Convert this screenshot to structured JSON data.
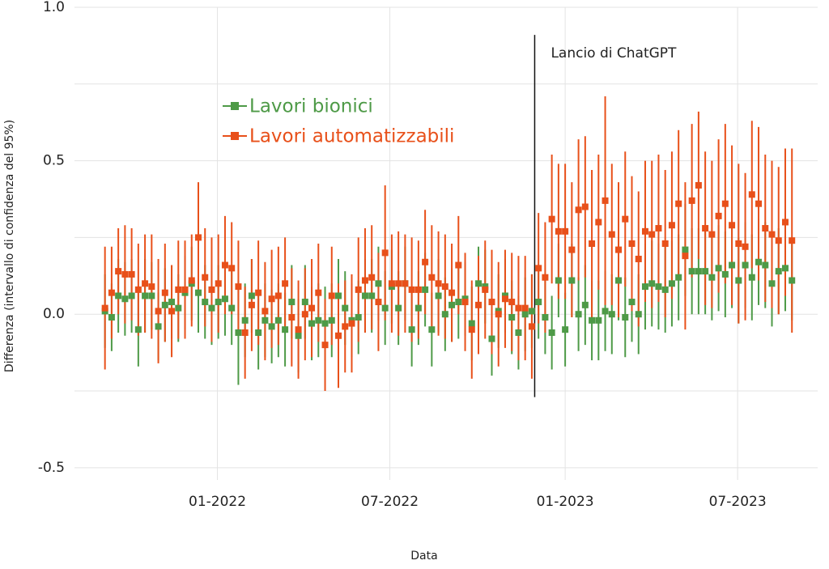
{
  "chart_data": {
    "type": "errorbar",
    "xlabel": "Data",
    "ylabel": "Differenza (intervallo di confidenza del 95%)",
    "x": [
      "2021-09-05",
      "2021-09-12",
      "2021-09-19",
      "2021-09-26",
      "2021-10-03",
      "2021-10-10",
      "2021-10-17",
      "2021-10-24",
      "2021-10-31",
      "2021-11-07",
      "2021-11-14",
      "2021-11-21",
      "2021-11-28",
      "2021-12-05",
      "2021-12-12",
      "2021-12-19",
      "2021-12-26",
      "2022-01-02",
      "2022-01-09",
      "2022-01-16",
      "2022-01-23",
      "2022-01-30",
      "2022-02-06",
      "2022-02-13",
      "2022-02-20",
      "2022-02-27",
      "2022-03-06",
      "2022-03-13",
      "2022-03-20",
      "2022-03-27",
      "2022-04-03",
      "2022-04-10",
      "2022-04-17",
      "2022-04-24",
      "2022-05-01",
      "2022-05-08",
      "2022-05-15",
      "2022-05-22",
      "2022-05-29",
      "2022-06-05",
      "2022-06-12",
      "2022-06-19",
      "2022-06-26",
      "2022-07-03",
      "2022-07-10",
      "2022-07-17",
      "2022-07-24",
      "2022-07-31",
      "2022-08-07",
      "2022-08-14",
      "2022-08-21",
      "2022-08-28",
      "2022-09-04",
      "2022-09-11",
      "2022-09-18",
      "2022-09-25",
      "2022-10-02",
      "2022-10-09",
      "2022-10-16",
      "2022-10-23",
      "2022-10-30",
      "2022-11-06",
      "2022-11-13",
      "2022-11-20",
      "2022-11-27",
      "2022-12-04",
      "2022-12-11",
      "2022-12-18",
      "2022-12-25",
      "2023-01-01",
      "2023-01-08",
      "2023-01-15",
      "2023-01-22",
      "2023-01-29",
      "2023-02-05",
      "2023-02-12",
      "2023-02-19",
      "2023-02-26",
      "2023-03-05",
      "2023-03-12",
      "2023-03-19",
      "2023-03-26",
      "2023-04-02",
      "2023-04-09",
      "2023-04-16",
      "2023-04-23",
      "2023-04-30",
      "2023-05-07",
      "2023-05-14",
      "2023-05-21",
      "2023-05-28",
      "2023-06-04",
      "2023-06-11",
      "2023-06-18",
      "2023-06-25",
      "2023-07-02",
      "2023-07-09",
      "2023-07-16",
      "2023-07-23",
      "2023-07-30",
      "2023-08-06",
      "2023-08-13",
      "2023-08-20",
      "2023-08-27"
    ],
    "series": [
      {
        "name": "Lavori bionici",
        "color": "#4e9a47",
        "values": [
          0.01,
          -0.01,
          0.06,
          0.05,
          0.06,
          -0.05,
          0.06,
          0.06,
          -0.04,
          0.03,
          0.04,
          0.02,
          0.07,
          0.1,
          0.07,
          0.04,
          0.02,
          0.04,
          0.05,
          0.02,
          -0.06,
          -0.02,
          0.06,
          -0.06,
          -0.02,
          -0.04,
          -0.02,
          -0.05,
          0.04,
          -0.07,
          0.04,
          -0.03,
          -0.02,
          -0.03,
          -0.02,
          0.06,
          0.02,
          -0.02,
          -0.01,
          0.06,
          0.06,
          0.1,
          0.02,
          0.09,
          0.02,
          0.1,
          -0.05,
          0.02,
          0.08,
          -0.05,
          0.06,
          0.0,
          0.03,
          0.04,
          0.05,
          -0.03,
          0.1,
          0.09,
          -0.08,
          0.01,
          0.06,
          -0.01,
          -0.06,
          0.0,
          0.01,
          0.04,
          -0.01,
          -0.06,
          0.11,
          -0.05,
          0.11,
          0.0,
          0.03,
          -0.02,
          -0.02,
          0.01,
          0.0,
          0.11,
          -0.01,
          0.04,
          0.0,
          0.09,
          0.1,
          0.09,
          0.08,
          0.1,
          0.12,
          0.21,
          0.14,
          0.14,
          0.14,
          0.12,
          0.15,
          0.13,
          0.16,
          0.11,
          0.16,
          0.12,
          0.17,
          0.16,
          0.1,
          0.14,
          0.15,
          0.11
        ],
        "errors": [
          0.12,
          0.11,
          0.12,
          0.12,
          0.12,
          0.12,
          0.12,
          0.11,
          0.11,
          0.12,
          0.12,
          0.11,
          0.12,
          0.12,
          0.13,
          0.12,
          0.12,
          0.12,
          0.12,
          0.12,
          0.17,
          0.12,
          0.12,
          0.12,
          0.12,
          0.12,
          0.12,
          0.12,
          0.12,
          0.12,
          0.12,
          0.12,
          0.12,
          0.12,
          0.12,
          0.12,
          0.12,
          0.12,
          0.12,
          0.12,
          0.12,
          0.12,
          0.12,
          0.12,
          0.12,
          0.12,
          0.12,
          0.12,
          0.12,
          0.12,
          0.12,
          0.12,
          0.12,
          0.12,
          0.12,
          0.12,
          0.12,
          0.12,
          0.12,
          0.12,
          0.12,
          0.12,
          0.12,
          0.12,
          0.12,
          0.12,
          0.12,
          0.12,
          0.12,
          0.12,
          0.12,
          0.12,
          0.13,
          0.13,
          0.13,
          0.13,
          0.13,
          0.13,
          0.13,
          0.13,
          0.13,
          0.14,
          0.14,
          0.14,
          0.14,
          0.14,
          0.14,
          0.15,
          0.14,
          0.14,
          0.14,
          0.14,
          0.14,
          0.14,
          0.14,
          0.14,
          0.14,
          0.14,
          0.14,
          0.14,
          0.14,
          0.14,
          0.14,
          0.13
        ]
      },
      {
        "name": "Lavori automatizzabili",
        "color": "#e8501a",
        "values": [
          0.02,
          0.07,
          0.14,
          0.13,
          0.13,
          0.08,
          0.1,
          0.09,
          0.01,
          0.07,
          0.01,
          0.08,
          0.08,
          0.11,
          0.25,
          0.12,
          0.08,
          0.1,
          0.16,
          0.15,
          0.09,
          -0.06,
          0.03,
          0.07,
          0.01,
          0.05,
          0.06,
          0.1,
          -0.01,
          -0.05,
          0.0,
          0.02,
          0.07,
          -0.1,
          0.06,
          -0.07,
          -0.04,
          -0.03,
          0.08,
          0.11,
          0.12,
          0.04,
          0.2,
          0.1,
          0.1,
          0.1,
          0.08,
          0.08,
          0.17,
          0.12,
          0.1,
          0.09,
          0.07,
          0.16,
          0.04,
          -0.05,
          0.03,
          0.08,
          0.04,
          0.0,
          0.05,
          0.04,
          0.02,
          0.02,
          -0.04,
          0.15,
          0.12,
          0.31,
          0.27,
          0.27,
          0.21,
          0.34,
          0.35,
          0.23,
          0.3,
          0.37,
          0.26,
          0.21,
          0.31,
          0.23,
          0.18,
          0.27,
          0.26,
          0.28,
          0.23,
          0.29,
          0.36,
          0.19,
          0.37,
          0.42,
          0.28,
          0.26,
          0.32,
          0.36,
          0.29,
          0.23,
          0.22,
          0.39,
          0.36,
          0.28,
          0.26,
          0.24,
          0.3,
          0.24
        ],
        "errors": [
          0.2,
          0.15,
          0.14,
          0.16,
          0.15,
          0.15,
          0.16,
          0.17,
          0.17,
          0.16,
          0.15,
          0.16,
          0.16,
          0.15,
          0.18,
          0.16,
          0.17,
          0.16,
          0.16,
          0.15,
          0.15,
          0.15,
          0.15,
          0.17,
          0.16,
          0.16,
          0.16,
          0.15,
          0.16,
          0.16,
          0.15,
          0.16,
          0.16,
          0.15,
          0.16,
          0.17,
          0.15,
          0.16,
          0.17,
          0.17,
          0.17,
          0.16,
          0.22,
          0.16,
          0.17,
          0.16,
          0.17,
          0.16,
          0.17,
          0.17,
          0.17,
          0.17,
          0.16,
          0.16,
          0.16,
          0.16,
          0.16,
          0.16,
          0.17,
          0.17,
          0.16,
          0.16,
          0.17,
          0.17,
          0.17,
          0.18,
          0.18,
          0.21,
          0.22,
          0.22,
          0.22,
          0.23,
          0.23,
          0.24,
          0.22,
          0.34,
          0.23,
          0.22,
          0.22,
          0.22,
          0.22,
          0.23,
          0.24,
          0.24,
          0.24,
          0.24,
          0.24,
          0.24,
          0.25,
          0.24,
          0.25,
          0.24,
          0.25,
          0.26,
          0.26,
          0.26,
          0.24,
          0.24,
          0.25,
          0.24,
          0.24,
          0.24,
          0.24,
          0.3
        ]
      }
    ],
    "xlim": [
      "2021-08-04",
      "2023-09-23"
    ],
    "xticks": [
      {
        "value": "2022-01-01",
        "label": "01-2022"
      },
      {
        "value": "2022-07-01",
        "label": "07-2022"
      },
      {
        "value": "2023-01-01",
        "label": "01-2023"
      },
      {
        "value": "2023-07-01",
        "label": "07-2023"
      }
    ],
    "ylim": [
      -0.54,
      1.0
    ],
    "yticks": [
      -0.5,
      {
        "value": 0,
        "label": "0.0"
      },
      0.5,
      {
        "value": 1,
        "label": "1.0"
      }
    ],
    "minor_yticks": [
      -0.25,
      0.25,
      0.75
    ],
    "grid": true,
    "legend": "upper left",
    "annotation": {
      "text": "Lancio di ChatGPT",
      "x": "2022-11-30",
      "y": [
        -0.27,
        0.91
      ]
    }
  }
}
